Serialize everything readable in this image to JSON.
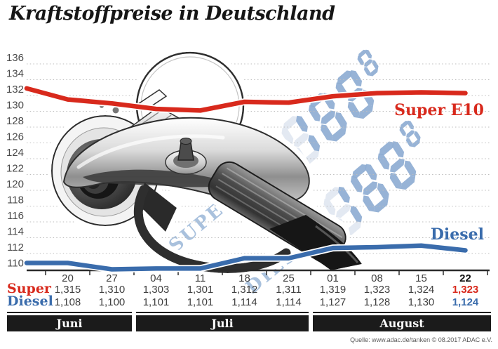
{
  "title": "Kraftstoffpreise in Deutschland",
  "source": "Quelle: www.adac.de/tanken   © 08.2017   ADAC e.V.",
  "colors": {
    "super_line": "#d8291c",
    "diesel_line": "#3a6cac",
    "grid": "#bdbdbd",
    "axis": "#2b2b2b",
    "month_bar": "#1b1b1b",
    "table_text": "#3f3f3f",
    "watermark_text": "#a9c1dd",
    "watermark_lit": "#8cabd1",
    "watermark_unlit": "#e3e9f2"
  },
  "watermark": {
    "super_label": "SUPER E10",
    "diesel_label": "DIESEL",
    "digits": "188",
    "sup_digit": "8"
  },
  "chart_data": {
    "type": "line",
    "x_labels": [
      "20",
      "27",
      "04",
      "11",
      "18",
      "25",
      "01",
      "08",
      "15",
      "22"
    ],
    "month_groups": [
      {
        "label": "Juni",
        "from": 0,
        "to": 1
      },
      {
        "label": "Juli",
        "from": 2,
        "to": 5
      },
      {
        "label": "August",
        "from": 6,
        "to": 9
      }
    ],
    "ylim": [
      110,
      136
    ],
    "ytick_step": 2,
    "grid": "dotted-horizontal",
    "legend_position": "inline-right",
    "series": [
      {
        "name": "Super",
        "inline_label": "Super E10",
        "color": "#d8291c",
        "values_cents": [
          131.5,
          131.0,
          130.3,
          130.1,
          131.2,
          131.1,
          131.9,
          132.3,
          132.4,
          132.3
        ],
        "table_values": [
          "1,315",
          "1,310",
          "1,303",
          "1,301",
          "1,312",
          "1,311",
          "1,319",
          "1,323",
          "1,324",
          "1,323"
        ],
        "lead_in_cents": 132.9
      },
      {
        "name": "Diesel",
        "inline_label": "Diesel",
        "color": "#3a6cac",
        "values_cents": [
          110.8,
          110.0,
          110.1,
          110.1,
          111.4,
          111.4,
          112.7,
          112.8,
          113.0,
          112.4
        ],
        "table_values": [
          "1,108",
          "1,100",
          "1,101",
          "1,101",
          "1,114",
          "1,114",
          "1,127",
          "1,128",
          "1,130",
          "1,124"
        ],
        "lead_in_cents": 110.8
      }
    ]
  }
}
